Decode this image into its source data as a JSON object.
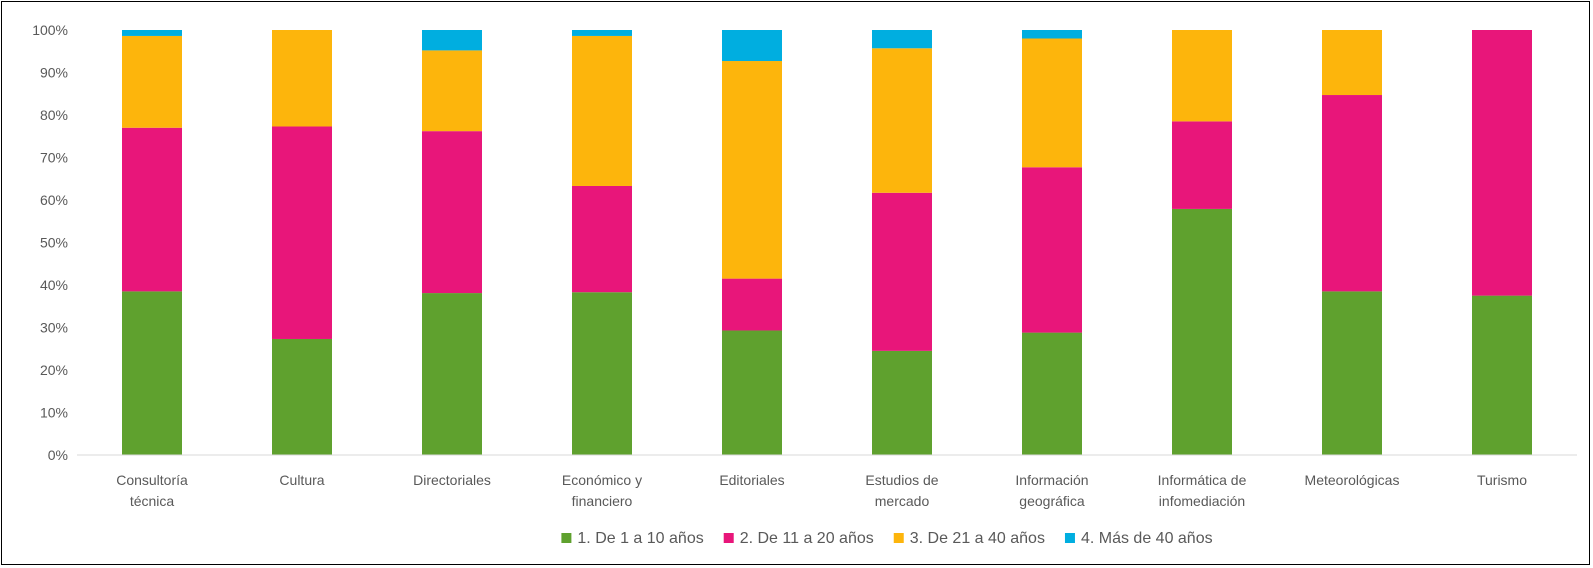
{
  "chart_data": {
    "type": "bar",
    "stacked": true,
    "percent_stacked": true,
    "categories": [
      [
        "Consultoría",
        "técnica"
      ],
      [
        "Cultura"
      ],
      [
        "Directoriales"
      ],
      [
        "Económico y",
        "financiero"
      ],
      [
        "Editoriales"
      ],
      [
        "Estudios de",
        "mercado"
      ],
      [
        "Información",
        "geográfica"
      ],
      [
        "Informática de",
        "infomediación"
      ],
      [
        "Meteorológicas"
      ],
      [
        "Turismo"
      ]
    ],
    "series": [
      {
        "name": "1. De 1 a 10 años",
        "color": "#5FA12E",
        "values": [
          38.5,
          27.3,
          38.1,
          38.3,
          29.3,
          24.5,
          28.8,
          57.9,
          38.5,
          37.5
        ]
      },
      {
        "name": "2. De 11 a 20 años",
        "color": "#E8167A",
        "values": [
          38.5,
          50.0,
          38.1,
          25.0,
          12.2,
          37.2,
          38.9,
          20.6,
          46.2,
          62.5
        ]
      },
      {
        "name": "3. De 21 a 40 años",
        "color": "#FDB50C",
        "values": [
          21.6,
          22.7,
          19.0,
          35.3,
          51.2,
          34.0,
          30.3,
          21.5,
          15.3,
          0
        ]
      },
      {
        "name": "4. Más de 40 años",
        "color": "#00AEE0",
        "values": [
          1.4,
          0,
          4.8,
          1.4,
          7.3,
          4.3,
          2.0,
          0,
          0,
          0
        ]
      }
    ],
    "ylim": [
      0,
      100
    ],
    "yticks": [
      "0%",
      "10%",
      "20%",
      "30%",
      "40%",
      "50%",
      "60%",
      "70%",
      "80%",
      "90%",
      "100%"
    ],
    "grid": false,
    "legend_position": "bottom",
    "title": "",
    "xlabel": "",
    "ylabel": ""
  },
  "colors": {
    "axis": "#D9D9D9",
    "text": "#595959"
  }
}
